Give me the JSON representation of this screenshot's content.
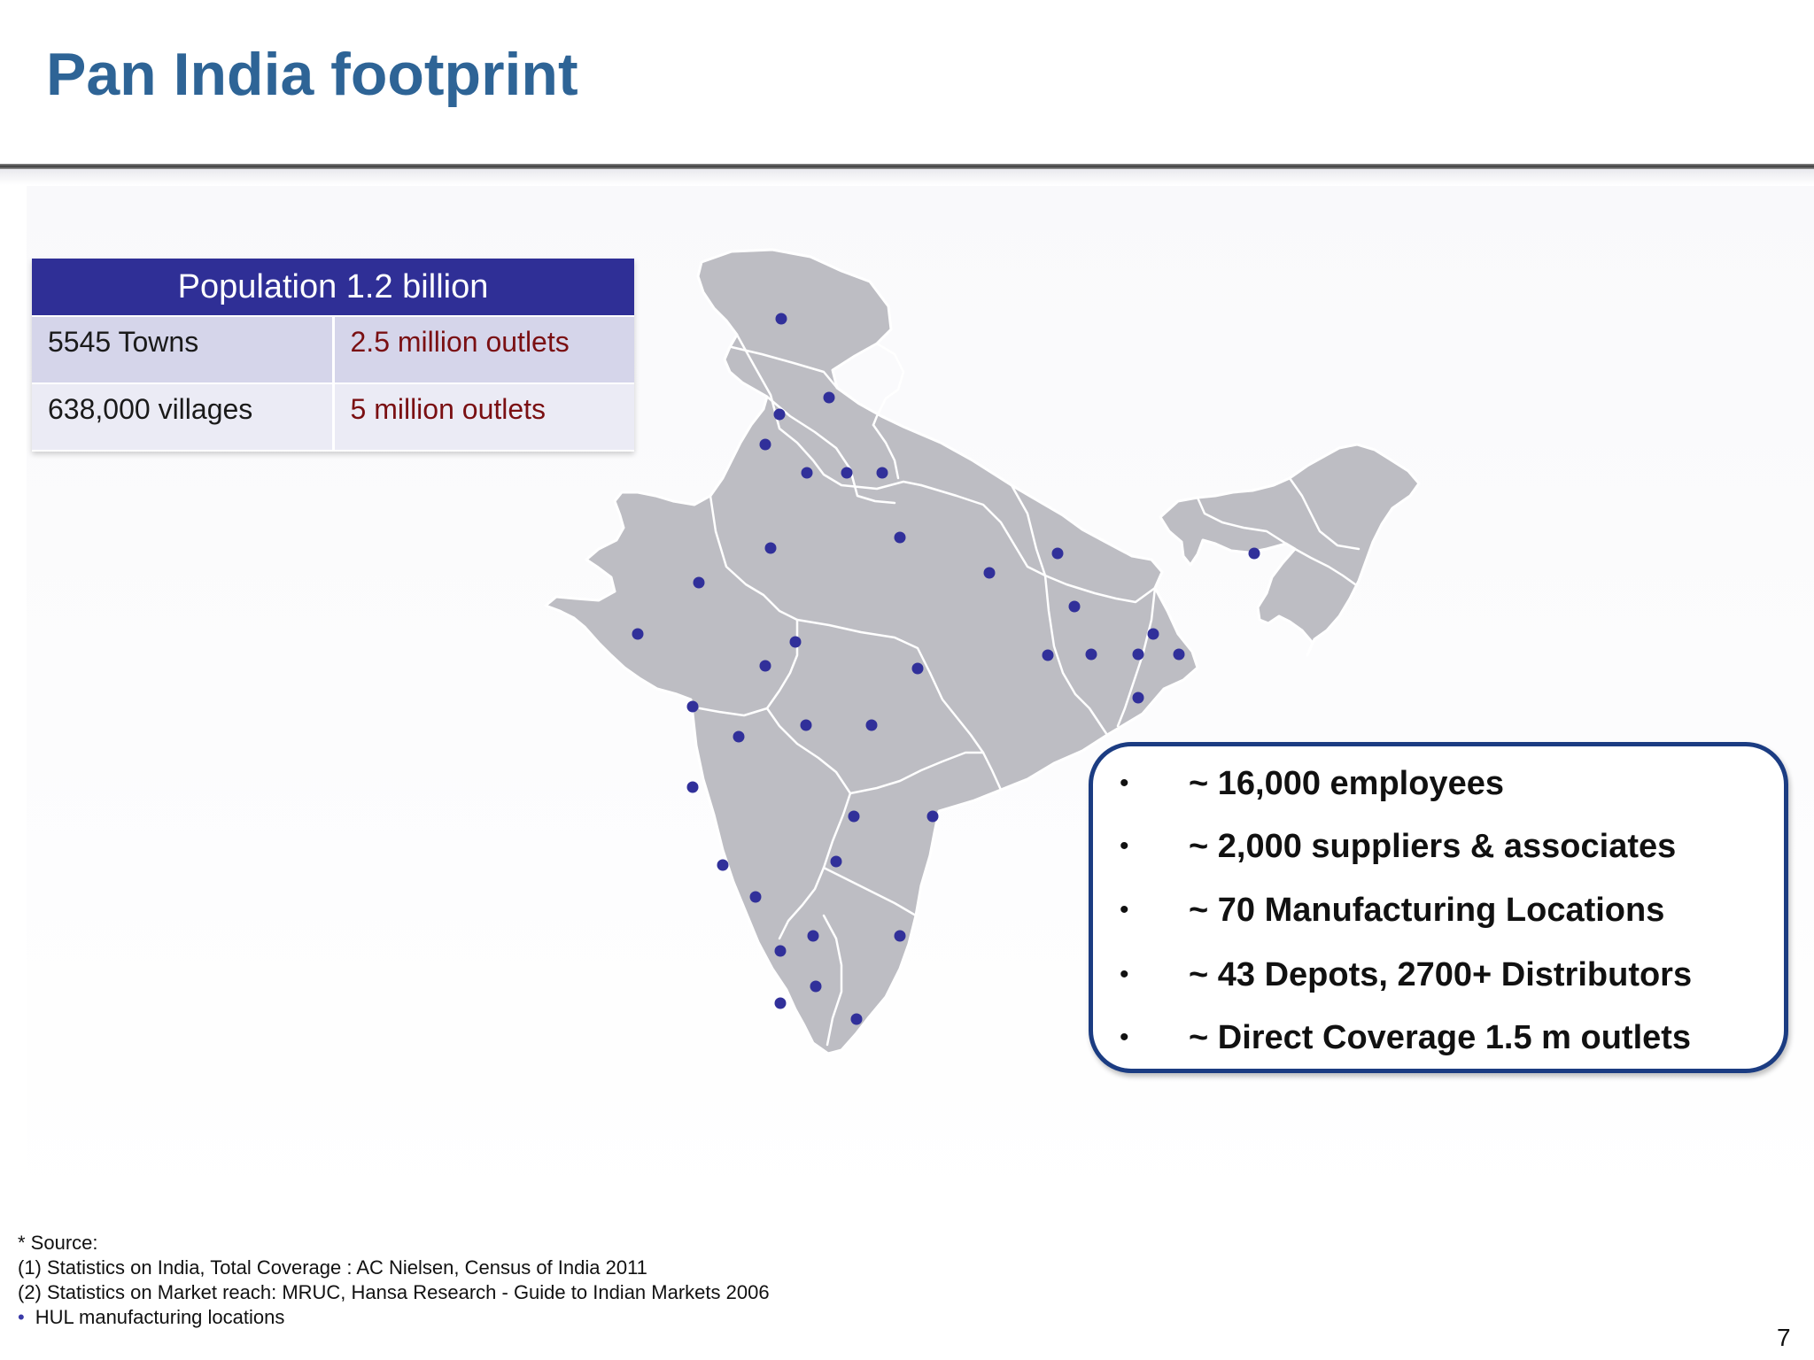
{
  "slide": {
    "title": "Pan India footprint",
    "page_number": "7"
  },
  "population_table": {
    "header": "Population 1.2 billion",
    "rows": [
      {
        "left": "5545 Towns",
        "right": "2.5 million outlets"
      },
      {
        "left": "638,000 villages",
        "right": "5 million outlets"
      }
    ]
  },
  "stats": {
    "bullet": "•",
    "items": [
      "~ 16,000 employees",
      "~ 2,000 suppliers & associates",
      "~ 70 Manufacturing Locations",
      "~ 43 Depots, 2700+ Distributors",
      "~ Direct Coverage 1.5 m outlets"
    ]
  },
  "footnotes": {
    "source_label": "* Source:",
    "line1": "(1) Statistics on India, Total Coverage : AC Nielsen, Census of India 2011",
    "line2": "(2) Statistics on Market reach: MRUC, Hansa Research - Guide to Indian Markets 2006",
    "bullet": "•",
    "legend": "HUL manufacturing locations"
  },
  "colors": {
    "title": "#2E6496",
    "table_header": "#2F2F96",
    "outlet_text": "#7A0F12",
    "map_fill": "#BDBDC3",
    "location_dot": "#31309A",
    "box_border": "#1B3C82"
  }
}
